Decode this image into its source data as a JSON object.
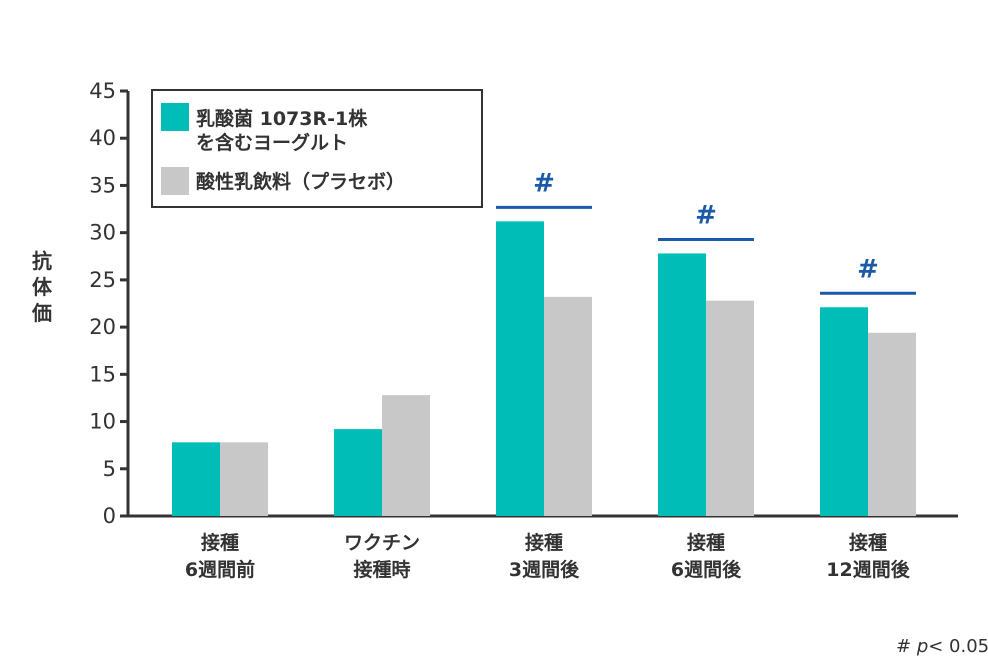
{
  "chart_data": {
    "type": "bar",
    "ylabel": "抗体価",
    "ylim": [
      0,
      45
    ],
    "yticks": [
      0,
      5,
      10,
      15,
      20,
      25,
      30,
      35,
      40,
      45
    ],
    "categories": [
      [
        "接種",
        "6週間前"
      ],
      [
        "ワクチン",
        "接種時"
      ],
      [
        "接種",
        "3週間後"
      ],
      [
        "接種",
        "6週間後"
      ],
      [
        "接種",
        "12週間後"
      ]
    ],
    "series": [
      {
        "name": [
          "乳酸菌 1073R-1株",
          "を含むヨーグルト"
        ],
        "color": "#00bdb8",
        "values": [
          7.8,
          9.2,
          31.2,
          27.8,
          22.1
        ]
      },
      {
        "name": [
          "酸性乳飲料（プラセボ）"
        ],
        "color": "#c8c8c8",
        "values": [
          7.8,
          12.8,
          23.2,
          22.8,
          19.4
        ]
      }
    ],
    "significance": {
      "marker": "#",
      "color": "#1a5aa8",
      "categories": [
        2,
        3,
        4
      ]
    },
    "note": {
      "symbol": "#",
      "p": "p",
      "rest": "< 0.05"
    },
    "legend_position": "top-left"
  }
}
